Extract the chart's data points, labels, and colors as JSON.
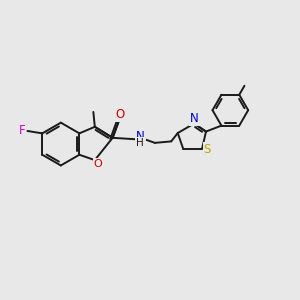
{
  "bg_color": "#e8e8e8",
  "bond_color": "#1a1a1a",
  "bond_lw": 1.4,
  "colors": {
    "F": "#cc00cc",
    "O": "#cc0000",
    "N": "#0000cc",
    "S": "#bbaa00",
    "H": "#1a1a1a",
    "C": "#1a1a1a"
  },
  "xlim": [
    0,
    10
  ],
  "ylim": [
    0,
    10
  ]
}
